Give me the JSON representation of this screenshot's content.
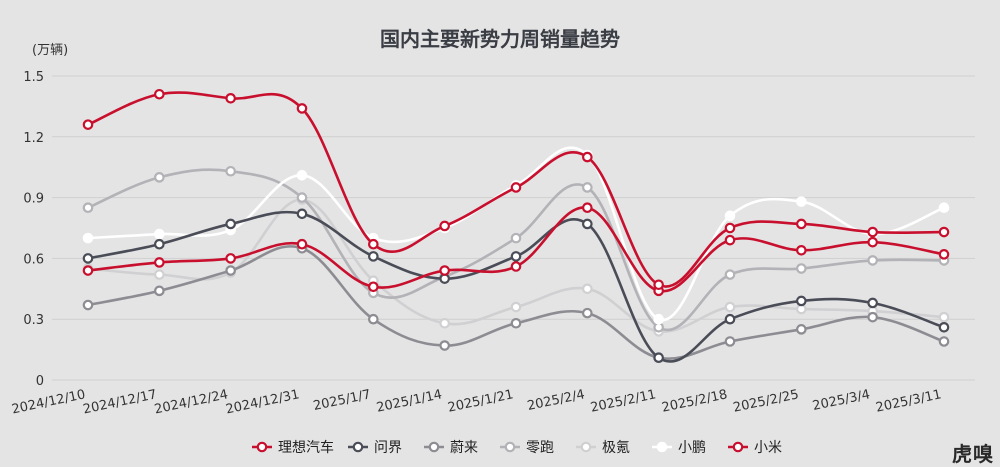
{
  "chart_data": {
    "type": "line",
    "title": "国内主要新势力周销量趋势",
    "ylabel": "(万辆)",
    "xlabel": "",
    "ylim": [
      0,
      1.5
    ],
    "yticks": [
      "0",
      "0.3",
      "0.6",
      "0.9",
      "1.2",
      "1.5"
    ],
    "grid": true,
    "legend_position": "bottom",
    "categories": [
      "2024/12/10",
      "2024/12/17",
      "2024/12/24",
      "2024/12/31",
      "2025/1/7",
      "2025/1/14",
      "2025/1/21",
      "2025/2/4",
      "2025/2/11",
      "2025/2/18",
      "2025/2/25",
      "2025/3/4",
      "2025/3/11"
    ],
    "series": [
      {
        "name": "理想汽车",
        "color": "#c8102e",
        "marker_fill": "#ffffff",
        "values": [
          0.54,
          0.58,
          0.6,
          0.67,
          0.46,
          0.54,
          0.56,
          0.85,
          0.44,
          0.69,
          0.64,
          0.68,
          0.62
        ]
      },
      {
        "name": "问界",
        "color": "#4a4d57",
        "marker_fill": "#ffffff",
        "values": [
          0.6,
          0.67,
          0.77,
          0.82,
          0.61,
          0.5,
          0.61,
          0.77,
          0.11,
          0.3,
          0.39,
          0.38,
          0.26
        ]
      },
      {
        "name": "蔚来",
        "color": "#8c8c92",
        "marker_fill": "#ffffff",
        "values": [
          0.37,
          0.44,
          0.54,
          0.65,
          0.3,
          0.17,
          0.28,
          0.33,
          0.11,
          0.19,
          0.25,
          0.31,
          0.19
        ]
      },
      {
        "name": "零跑",
        "color": "#b2b2b7",
        "marker_fill": "#ffffff",
        "values": [
          0.85,
          1.0,
          1.03,
          0.9,
          0.43,
          0.51,
          0.7,
          0.95,
          0.26,
          0.52,
          0.55,
          0.59,
          0.59
        ]
      },
      {
        "name": "极氪",
        "color": "#d0d0d3",
        "marker_fill": "#ffffff",
        "values": [
          0.55,
          0.52,
          0.53,
          0.89,
          0.49,
          0.28,
          0.36,
          0.45,
          0.24,
          0.36,
          0.35,
          0.34,
          0.31
        ]
      },
      {
        "name": "小鹏",
        "color": "#ffffff",
        "marker_fill": "#ffffff",
        "values": [
          0.7,
          0.72,
          0.74,
          1.01,
          0.7,
          0.75,
          0.96,
          1.11,
          0.3,
          0.81,
          0.88,
          0.72,
          0.85
        ]
      },
      {
        "name": "小米",
        "color": "#c8102e",
        "marker_fill": "#ffffff",
        "values": [
          1.26,
          1.41,
          1.39,
          1.34,
          0.67,
          0.76,
          0.95,
          1.1,
          0.47,
          0.75,
          0.77,
          0.73,
          0.73
        ]
      }
    ]
  },
  "watermark": "虎嗅"
}
